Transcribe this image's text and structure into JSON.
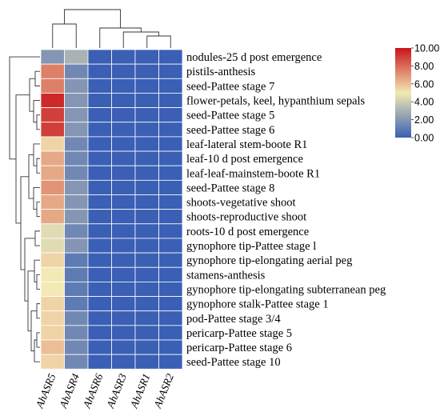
{
  "chart_data": {
    "type": "heatmap",
    "title": "",
    "columns": [
      "AhASR5",
      "AhASR4",
      "AhASR6",
      "AhASR3",
      "AhASR1",
      "AhASR2"
    ],
    "rows": [
      "nodules-25 d post emergence",
      "pistils-anthesis",
      "seed-Pattee stage 7",
      "flower-petals, keel, hypanthium sepals",
      "seed-Pattee stage 5",
      "seed-Pattee stage 6",
      "leaf-lateral stem-boote R1",
      "leaf-10 d post emergence",
      "leaf-leaf-mainstem-boote R1",
      "seed-Pattee stage 8",
      "shoots-vegetative shoot",
      "shoots-reproductive shoot",
      "roots-10 d post emergence",
      "gynophore tip-Pattee stage l",
      "gynophore tip-elongating aerial peg",
      "stamens-anthesis",
      "gynophore tip-elongating subterranean peg",
      "gynophore stalk-Pattee stage 1",
      "pod-Pattee stage 3/4",
      "pericarp-Pattee stage 5",
      "pericarp-Pattee stage 6",
      "seed-Pattee stage 10"
    ],
    "values": [
      [
        2.0,
        3.0,
        0.0,
        0.0,
        0.0,
        0.0
      ],
      [
        7.5,
        1.5,
        0.0,
        0.0,
        0.0,
        0.0
      ],
      [
        7.5,
        2.0,
        0.0,
        0.0,
        0.0,
        0.0
      ],
      [
        9.5,
        2.0,
        0.0,
        0.0,
        0.0,
        0.0
      ],
      [
        9.0,
        2.0,
        0.0,
        0.0,
        0.0,
        0.0
      ],
      [
        9.0,
        2.0,
        0.0,
        0.0,
        0.0,
        0.0
      ],
      [
        5.5,
        1.5,
        0.0,
        0.0,
        0.0,
        0.0
      ],
      [
        6.5,
        1.5,
        0.0,
        0.0,
        0.0,
        0.0
      ],
      [
        6.5,
        1.5,
        0.0,
        0.0,
        0.0,
        0.0
      ],
      [
        7.0,
        2.0,
        0.0,
        0.0,
        0.0,
        0.0
      ],
      [
        6.5,
        2.0,
        0.0,
        0.0,
        0.0,
        0.0
      ],
      [
        6.5,
        2.0,
        0.0,
        0.0,
        0.0,
        0.0
      ],
      [
        4.5,
        1.5,
        0.0,
        0.0,
        0.0,
        0.0
      ],
      [
        4.5,
        2.0,
        0.0,
        0.0,
        0.0,
        0.0
      ],
      [
        5.5,
        1.0,
        0.0,
        0.0,
        0.0,
        0.0
      ],
      [
        5.0,
        1.0,
        0.0,
        0.0,
        0.0,
        0.0
      ],
      [
        5.0,
        1.0,
        0.0,
        0.0,
        0.0,
        0.0
      ],
      [
        5.5,
        1.0,
        0.0,
        0.0,
        0.0,
        0.0
      ],
      [
        5.5,
        1.5,
        0.0,
        0.0,
        0.0,
        0.0
      ],
      [
        5.5,
        1.5,
        0.0,
        0.0,
        0.0,
        0.0
      ],
      [
        6.0,
        1.5,
        0.0,
        0.0,
        0.0,
        0.0
      ],
      [
        5.5,
        1.5,
        0.0,
        0.0,
        0.0,
        0.0
      ]
    ],
    "color_scale": {
      "min": 0.0,
      "max": 10.0,
      "colors": [
        "#3a5fb4",
        "#f3e9b4",
        "#c9141c"
      ],
      "ticks": [
        "10.00",
        "8.00",
        "6.00",
        "4.00",
        "2.00",
        "0.00"
      ]
    },
    "dendrograms": {
      "rows": true,
      "columns": true
    },
    "legend_position": "right"
  }
}
